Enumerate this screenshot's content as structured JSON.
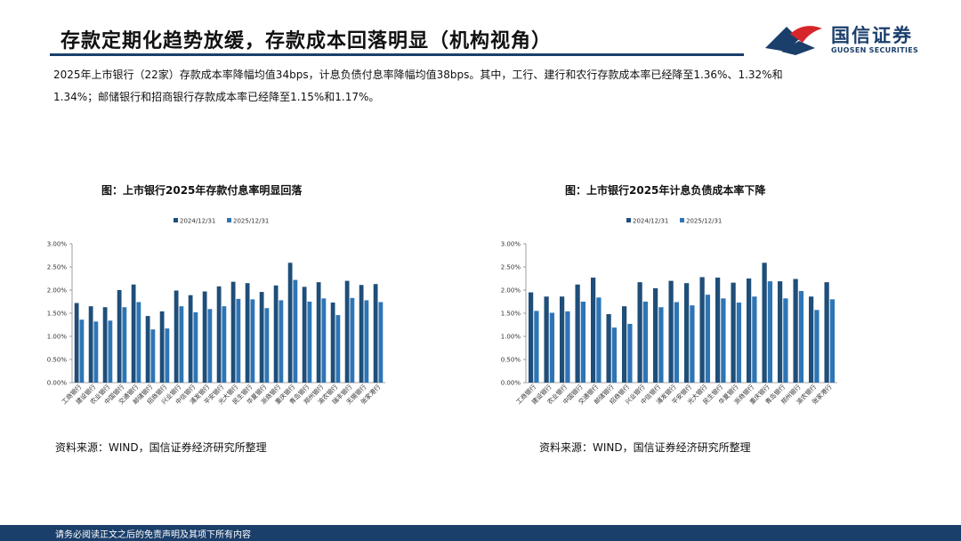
{
  "header": {
    "title": "存款定期化趋势放缓，存款成本回落明显（机构视角）",
    "logo_name": "国信证券",
    "logo_en": "GUOSEN SECURITIES"
  },
  "summary": {
    "line1": "2025年上市银行（22家）存款成本率降幅均值34bps，计息负债付息率降幅均值38bps。其中，工行、建行和农行存款成本率已经降至1.36%、1.32%和",
    "line2": "1.34%；邮储银行和招商银行存款成本率已经降至1.15%和1.17%。"
  },
  "colors": {
    "series_2024": "#1f4e79",
    "series_2025": "#2e75b6",
    "brand": "#1b3f6b",
    "accent_red": "#d7262b"
  },
  "chart_data": [
    {
      "type": "bar",
      "title": "图：上市银行2025年存款付息率明显回落",
      "source": "资料来源：WIND，国信证券经济研究所整理",
      "ylim": [
        0,
        3.0
      ],
      "yticks": [
        "0.00%",
        "0.50%",
        "1.00%",
        "1.50%",
        "2.00%",
        "2.50%",
        "3.00%"
      ],
      "categories": [
        "工商银行",
        "建设银行",
        "农业银行",
        "中国银行",
        "交通银行",
        "邮储银行",
        "招商银行",
        "兴业银行",
        "中信银行",
        "浦发银行",
        "平安银行",
        "光大银行",
        "民生银行",
        "华夏银行",
        "浙商银行",
        "重庆银行",
        "青岛银行",
        "郑州银行",
        "渝农银行",
        "瑞丰银行",
        "无锡银行",
        "张家港行"
      ],
      "series": [
        {
          "name": "2024/12/31",
          "values": [
            1.72,
            1.65,
            1.63,
            2.0,
            2.12,
            1.44,
            1.54,
            1.99,
            1.89,
            1.97,
            2.08,
            2.18,
            2.15,
            1.96,
            2.1,
            2.59,
            2.07,
            2.17,
            1.73,
            2.2,
            2.11,
            2.13
          ]
        },
        {
          "name": "2025/12/31",
          "values": [
            1.36,
            1.32,
            1.34,
            1.63,
            1.74,
            1.15,
            1.17,
            1.65,
            1.52,
            1.59,
            1.65,
            1.81,
            1.8,
            1.61,
            1.78,
            2.22,
            1.75,
            1.82,
            1.46,
            1.83,
            1.78,
            1.74
          ]
        }
      ]
    },
    {
      "type": "bar",
      "title": "图：上市银行2025年计息负债成本率下降",
      "source": "资料来源：WIND，国信证券经济研究所整理",
      "ylim": [
        0,
        3.0
      ],
      "yticks": [
        "0.00%",
        "0.50%",
        "1.00%",
        "1.50%",
        "2.00%",
        "2.50%",
        "3.00%"
      ],
      "categories": [
        "工商银行",
        "建设银行",
        "农业银行",
        "中国银行",
        "交通银行",
        "邮储银行",
        "招商银行",
        "兴业银行",
        "中信银行",
        "浦发银行",
        "平安银行",
        "光大银行",
        "民生银行",
        "华夏银行",
        "浙商银行",
        "重庆银行",
        "青岛银行",
        "郑州银行",
        "渝农银行",
        "张家港行"
      ],
      "series": [
        {
          "name": "2024/12/31",
          "values": [
            1.95,
            1.86,
            1.86,
            2.12,
            2.27,
            1.48,
            1.65,
            2.17,
            2.04,
            2.2,
            2.15,
            2.28,
            2.27,
            2.16,
            2.25,
            2.59,
            2.19,
            2.24,
            1.86,
            2.17
          ]
        },
        {
          "name": "2025/12/31",
          "values": [
            1.55,
            1.51,
            1.54,
            1.75,
            1.84,
            1.19,
            1.27,
            1.75,
            1.63,
            1.74,
            1.67,
            1.9,
            1.82,
            1.73,
            1.86,
            2.19,
            1.82,
            1.98,
            1.57,
            1.8
          ]
        }
      ]
    }
  ]
}
